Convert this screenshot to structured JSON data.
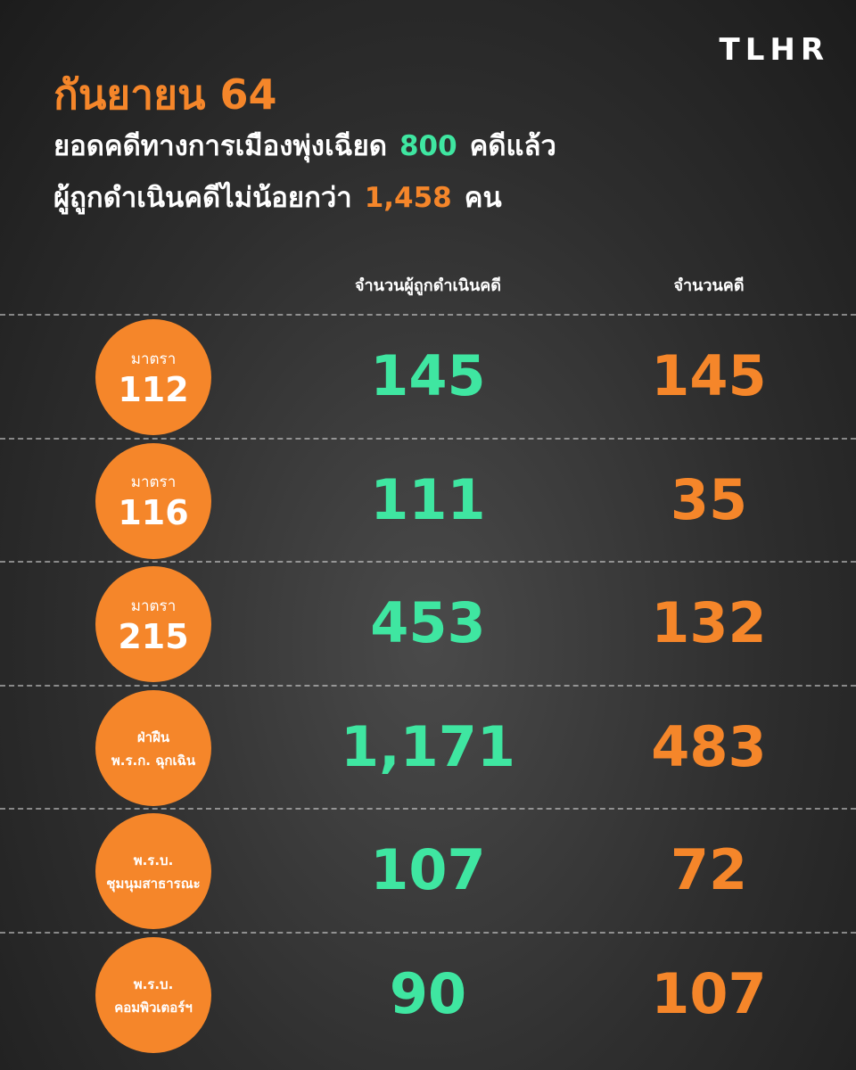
{
  "logo": "TLHR",
  "header": {
    "title": "กันยายน 64",
    "line1": [
      "ยอดคดีทางการเมืองพุ่งเฉียด",
      "800",
      "คดีแล้ว"
    ],
    "line2": [
      "ผู้ถูกดำเนินคดีไม่น้อยกว่า",
      "1,458",
      "คน"
    ]
  },
  "table": {
    "columns": [
      "จำนวนผู้ถูกดำเนินคดี",
      "จำนวนคดี"
    ],
    "rows": [
      {
        "label": [
          "มาตรา",
          "112"
        ],
        "people": "145",
        "cases": "145"
      },
      {
        "label": [
          "มาตรา",
          "116"
        ],
        "people": "111",
        "cases": "35"
      },
      {
        "label": [
          "มาตรา",
          "215"
        ],
        "people": "453",
        "cases": "132"
      },
      {
        "label": [
          "ฝ่าฝืน",
          "พ.ร.ก. ฉุกเฉิน"
        ],
        "people": "1,171",
        "cases": "483"
      },
      {
        "label": [
          "พ.ร.บ.",
          "ชุมนุมสาธารณะ"
        ],
        "people": "107",
        "cases": "72"
      },
      {
        "label": [
          "พ.ร.บ.",
          "คอมพิวเตอร์ฯ"
        ],
        "people": "90",
        "cases": "107"
      }
    ]
  }
}
